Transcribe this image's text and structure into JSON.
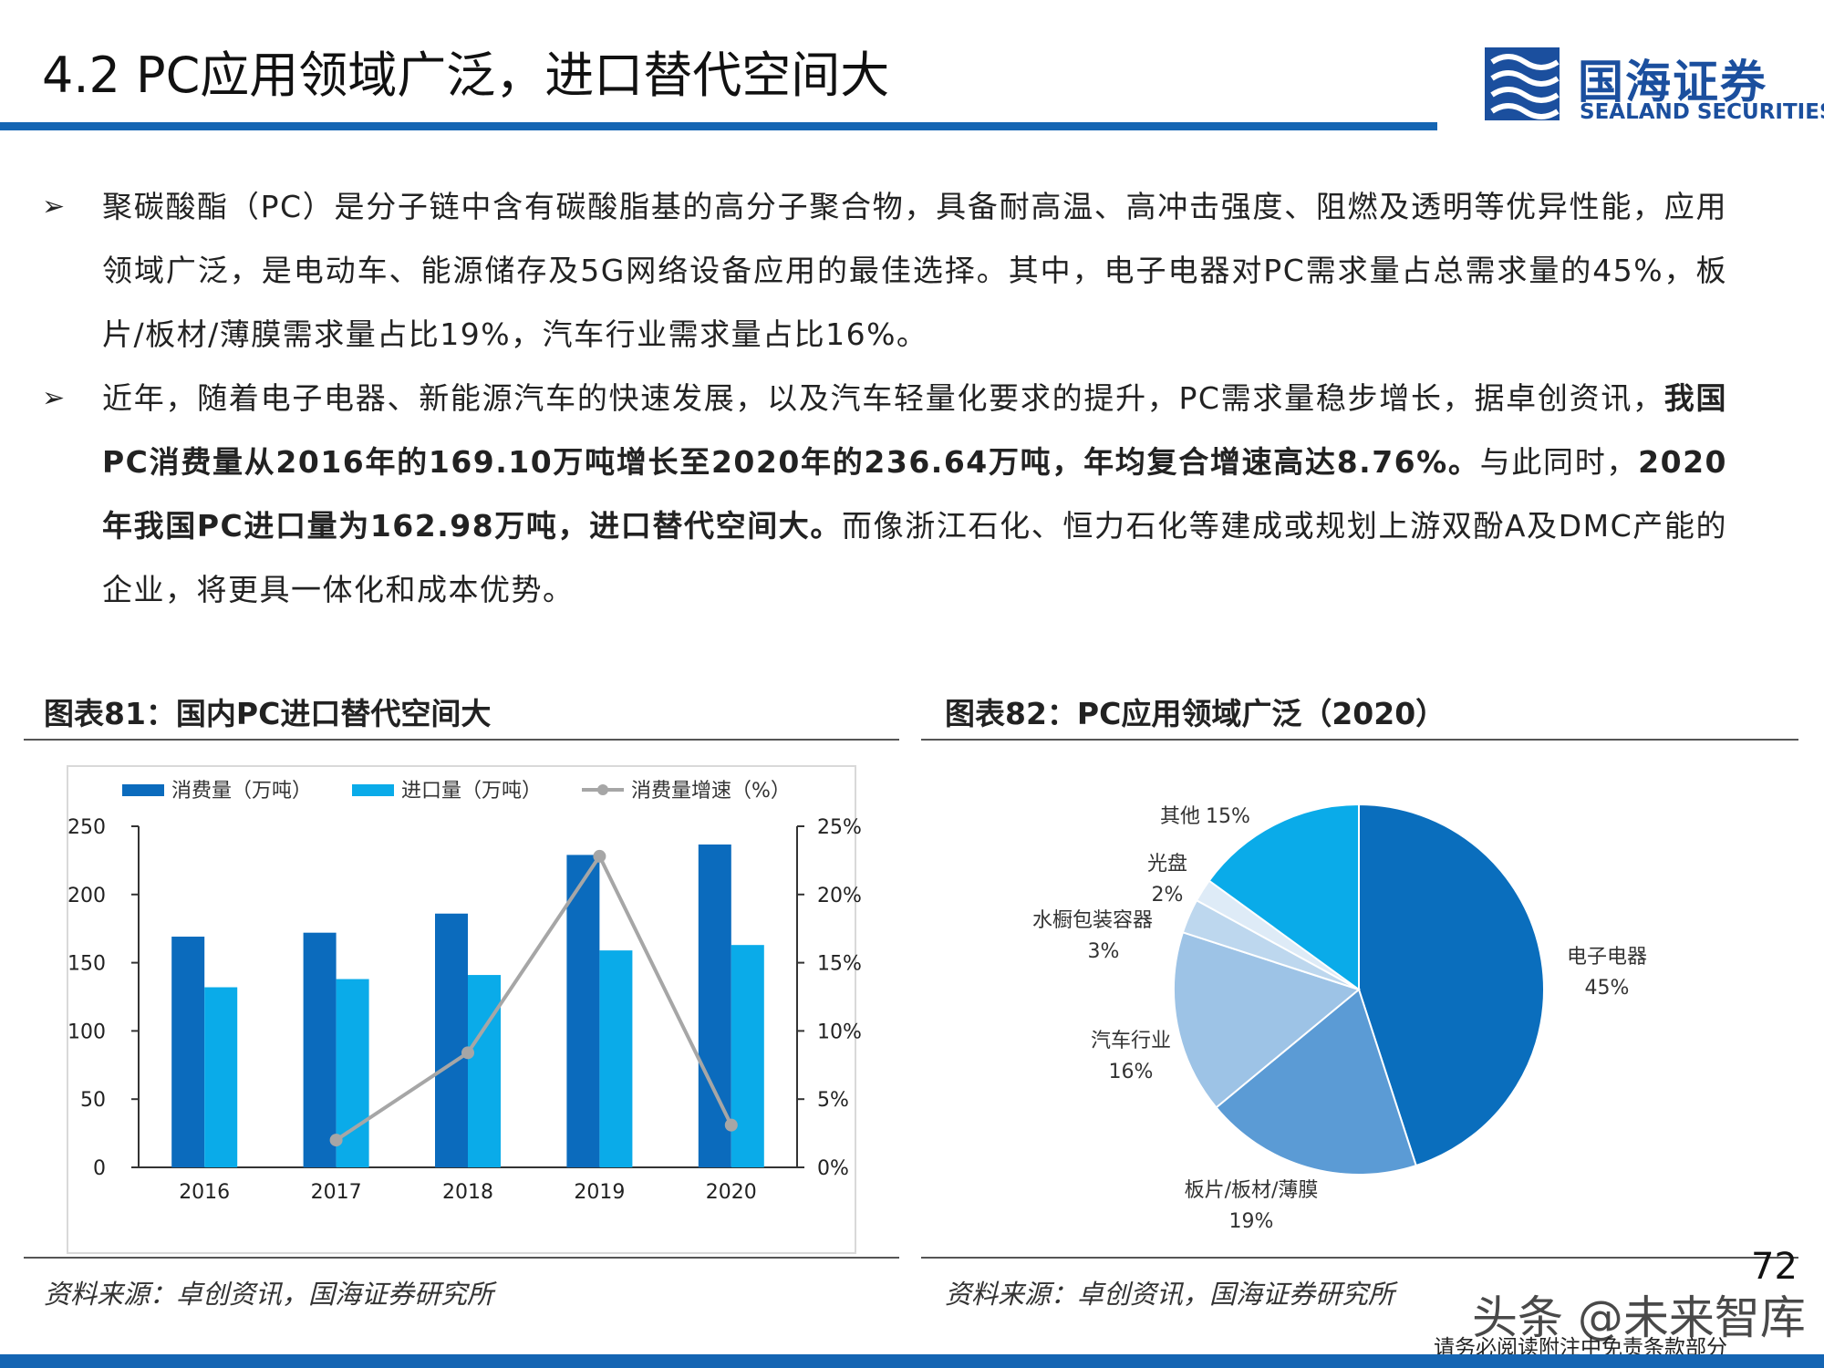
{
  "header": {
    "title": "4.2 PC应用领域广泛，进口替代空间大",
    "logo_cn": "国海证券",
    "logo_en": "SEALAND SECURITIES"
  },
  "bullets": [
    {
      "marker": "➢",
      "segments": [
        {
          "text": "聚碳酸酯（PC）是分子链中含有碳酸脂基的高分子聚合物，具备耐高温、高冲击强度、阻燃及透明等优异性能，应用领域广泛，是电动车、能源储存及5G网络设备应用的最佳选择。其中，电子电器对PC需求量占总需求量的45%，板片/板材/薄膜需求量占比19%，汽车行业需求量占比16%。",
          "bold": false
        }
      ]
    },
    {
      "marker": "➢",
      "segments": [
        {
          "text": "近年，随着电子电器、新能源汽车的快速发展，以及汽车轻量化要求的提升，PC需求量稳步增长，据卓创资讯，",
          "bold": false
        },
        {
          "text": "我国PC消费量从2016年的169.10万吨增长至2020年的236.64万吨，年均复合增速高达8.76%。",
          "bold": true
        },
        {
          "text": "与此同时，",
          "bold": false
        },
        {
          "text": "2020年我国PC进口量为162.98万吨，进口替代空间大。",
          "bold": true
        },
        {
          "text": "而像浙江石化、恒力石化等建成或规划上游双酚A及DMC产能的企业，将更具一体化和成本优势。",
          "bold": false
        }
      ]
    }
  ],
  "figures": [
    {
      "title": "图表81：国内PC进口替代空间大",
      "source": "资料来源：卓创资讯，国海证券研究所"
    },
    {
      "title": "图表82：PC应用领域广泛（2020）",
      "source": "资料来源：卓创资讯，国海证券研究所"
    }
  ],
  "chart_data": [
    {
      "type": "bar",
      "categories": [
        "2016",
        "2017",
        "2018",
        "2019",
        "2020"
      ],
      "series": [
        {
          "name": "消费量（万吨）",
          "kind": "bar",
          "axis": "left",
          "color": "#0b6bbd",
          "values": [
            169.1,
            172,
            186,
            229,
            236.64
          ]
        },
        {
          "name": "进口量（万吨）",
          "kind": "bar",
          "axis": "left",
          "color": "#0aabe9",
          "values": [
            132,
            138,
            141,
            159,
            162.98
          ]
        },
        {
          "name": "消费量增速（%）",
          "kind": "line",
          "axis": "right",
          "color": "#a6a6a6",
          "values": [
            null,
            2,
            8.4,
            22.8,
            3.1
          ]
        }
      ],
      "y_left": {
        "ticks": [
          "0",
          "50",
          "100",
          "150",
          "200",
          "250"
        ],
        "range": [
          0,
          250
        ]
      },
      "y_right": {
        "ticks": [
          "0%",
          "5%",
          "10%",
          "15%",
          "20%",
          "25%"
        ],
        "range": [
          0,
          25
        ]
      },
      "legend_position": "top",
      "grid": false
    },
    {
      "type": "pie",
      "slices": [
        {
          "name": "电子电器",
          "value": 45,
          "label": "45%",
          "color": "#0a6ebd"
        },
        {
          "name": "板片/板材/薄膜",
          "value": 19,
          "label": "19%",
          "color": "#5b9bd5"
        },
        {
          "name": "汽车行业",
          "value": 16,
          "label": "16%",
          "color": "#9dc3e6"
        },
        {
          "name": "水橱包装容器",
          "value": 3,
          "label": "3%",
          "color": "#bdd7ee"
        },
        {
          "name": "光盘",
          "value": 2,
          "label": "2%",
          "color": "#deebf7"
        },
        {
          "name": "其他",
          "value": 15,
          "label": "15%",
          "color": "#0aabe9"
        }
      ]
    }
  ],
  "page_number": "72",
  "watermark": {
    "main": "头条 @未来智库",
    "sub": "请务必阅读附注中免责条款部分"
  }
}
